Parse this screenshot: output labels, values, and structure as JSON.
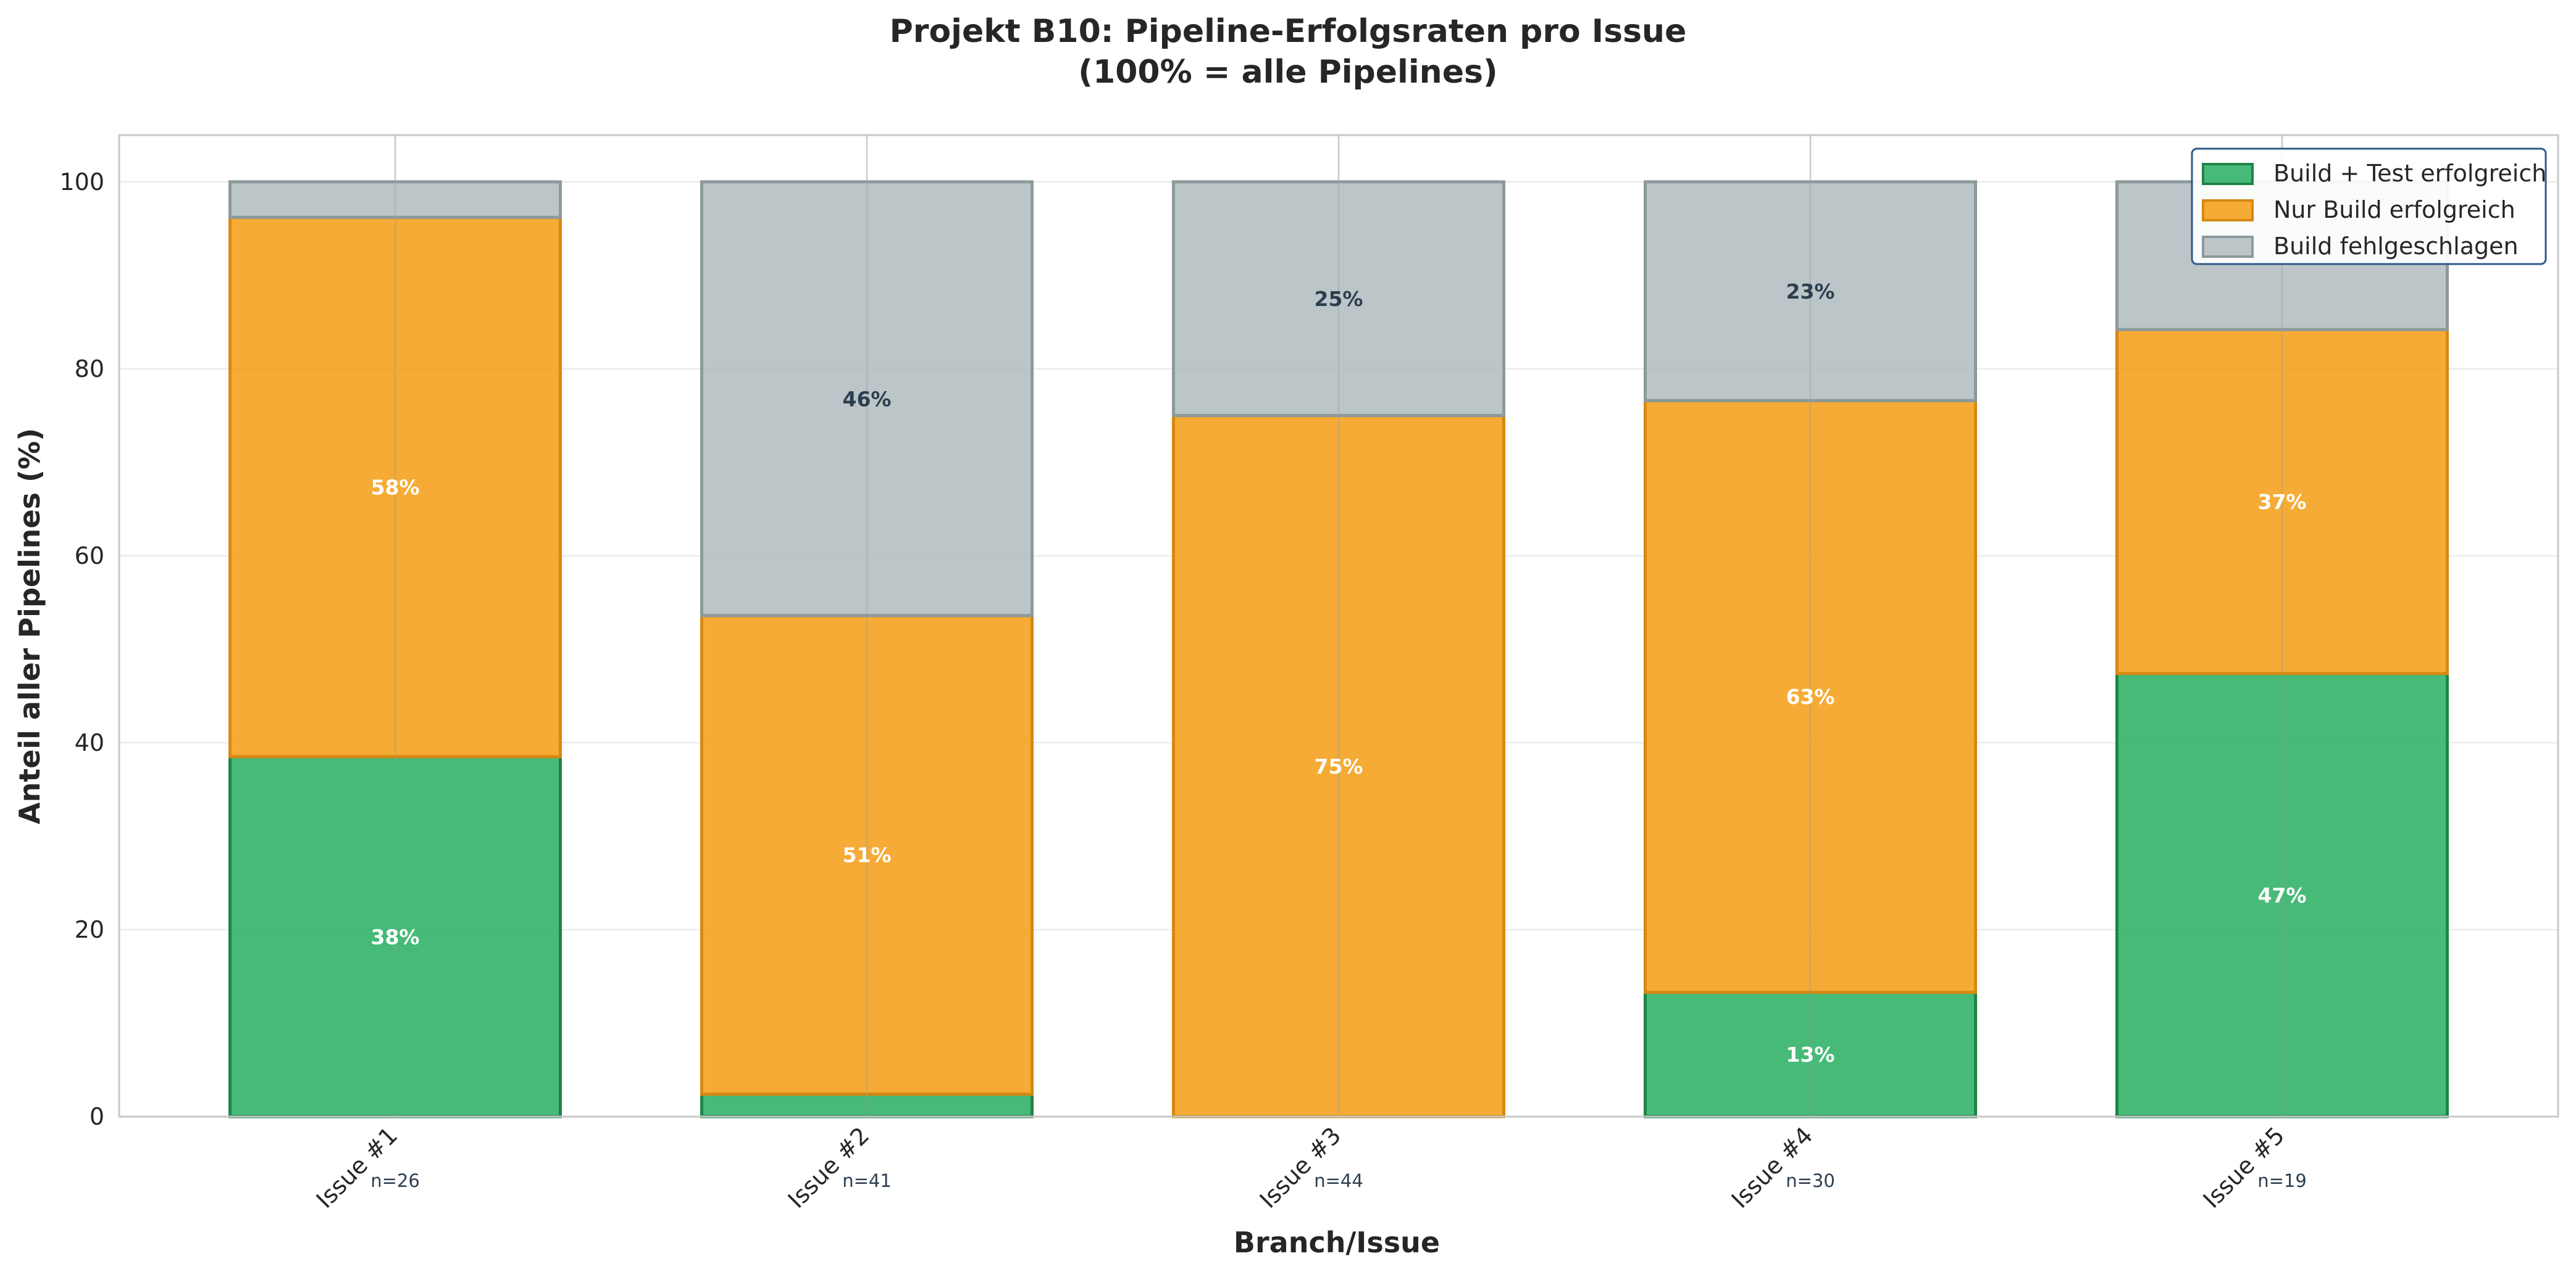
{
  "chart_data": {
    "type": "bar",
    "stacked": true,
    "title_line1": "Projekt B10: Pipeline-Erfolgsraten pro Issue",
    "title_line2": "(100% = alle Pipelines)",
    "xlabel": "Branch/Issue",
    "ylabel": "Anteil aller Pipelines (%)",
    "ylim": [
      0,
      105
    ],
    "yticks": [
      0,
      20,
      40,
      60,
      80,
      100
    ],
    "grid": true,
    "legend_placement": "top-right",
    "categories": [
      "Issue #1",
      "Issue #2",
      "Issue #3",
      "Issue #4",
      "Issue #5"
    ],
    "n_labels": [
      "n=26",
      "n=41",
      "n=44",
      "n=30",
      "n=19"
    ],
    "series": [
      {
        "name": "Build + Test erfolgreich",
        "values": [
          38.5,
          2.4,
          0,
          13.3,
          47.4
        ],
        "labels": [
          "38%",
          "",
          "",
          "13%",
          "47%"
        ],
        "color": "#27ae60",
        "edge_color": "#1e8449",
        "label_color": "#ffffff"
      },
      {
        "name": "Nur Build erfolgreich",
        "values": [
          57.7,
          51.2,
          75.0,
          63.3,
          36.8
        ],
        "labels": [
          "58%",
          "51%",
          "75%",
          "63%",
          "37%"
        ],
        "color": "#f39c12",
        "edge_color": "#d68910",
        "label_color": "#ffffff"
      },
      {
        "name": "Build fehlgeschlagen",
        "values": [
          3.8,
          46.4,
          25.0,
          23.4,
          15.8
        ],
        "labels": [
          "",
          "46%",
          "25%",
          "23%",
          ""
        ],
        "color": "#b0bcbe",
        "edge_color": "#8c9a9b",
        "label_color": "#2c3e50"
      }
    ]
  }
}
